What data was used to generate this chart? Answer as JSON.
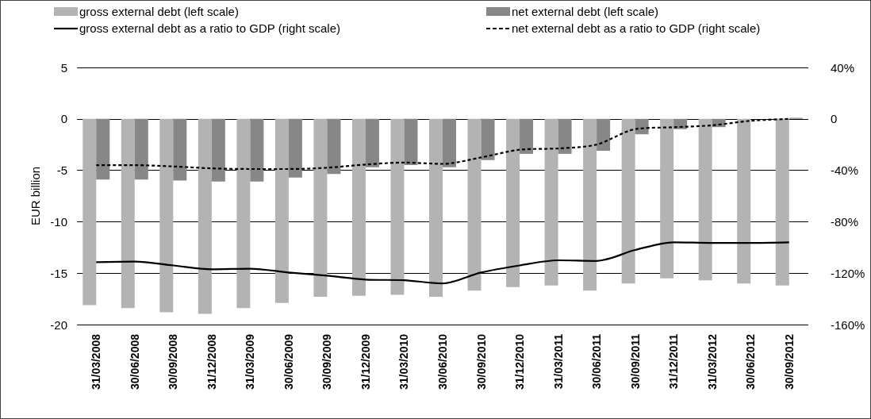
{
  "chart_data": {
    "type": "bar",
    "categories": [
      "31/03/2008",
      "30/06/2008",
      "30/09/2008",
      "31/12/2008",
      "31/03/2009",
      "30/06/2009",
      "30/09/2009",
      "31/12/2009",
      "31/03/2010",
      "30/06/2010",
      "30/09/2010",
      "31/12/2010",
      "31/03/2011",
      "30/06/2011",
      "30/09/2011",
      "31/12/2011",
      "31/03/2012",
      "30/06/2012",
      "30/09/2012"
    ],
    "series": [
      {
        "name": "gross external debt (left scale)",
        "color": "#b3b3b3",
        "values": [
          -18.1,
          -18.4,
          -18.8,
          -18.95,
          -18.4,
          -17.9,
          -17.3,
          -17.2,
          -17.1,
          -17.3,
          -16.7,
          -16.35,
          -16.2,
          -16.7,
          -16.0,
          -15.5,
          -15.7,
          -16.0,
          -16.2
        ]
      },
      {
        "name": "net external debt (left scale)",
        "color": "#878787",
        "values": [
          -5.9,
          -5.9,
          -6.0,
          -6.1,
          -6.1,
          -5.7,
          -5.35,
          -4.7,
          -4.5,
          -4.7,
          -4.0,
          -3.4,
          -3.4,
          -3.1,
          -1.5,
          -1.0,
          -0.8,
          null,
          0.1
        ]
      },
      {
        "name": "gross external debt as a ratio to GDP (right scale)",
        "type": "line",
        "axis": "y2",
        "color": "#000000",
        "line_style": "solid",
        "values": [
          -111.5,
          -111,
          -114,
          -117,
          -116.5,
          -119.5,
          -122,
          -125,
          -125.5,
          -128,
          -119.5,
          -114,
          -110,
          -110.5,
          -102,
          -96,
          -96.5,
          -96.5,
          -96
        ]
      },
      {
        "name": "net external debt as a ratio to GDP (right scale)",
        "type": "line",
        "axis": "y2",
        "color": "#000000",
        "line_style": "dashed",
        "values": [
          -36,
          -36,
          -37,
          -38.5,
          -39,
          -39,
          -38,
          -35.5,
          -34,
          -35,
          -30,
          -24,
          -23,
          -20,
          -8,
          -6.5,
          -5,
          -1.5,
          0
        ]
      }
    ],
    "ylabel": "EUR billion",
    "ylim": [
      -20,
      5
    ],
    "yticks": [
      -20,
      -15,
      -10,
      -5,
      0,
      5
    ],
    "y2lim": [
      -160,
      40
    ],
    "y2ticks": [
      {
        "value": -160,
        "label": "-160%"
      },
      {
        "value": -120,
        "label": "-120%"
      },
      {
        "value": -80,
        "label": "-80%"
      },
      {
        "value": -40,
        "label": "-40%"
      },
      0,
      {
        "value": 40,
        "label": "40%"
      }
    ],
    "grid": "y",
    "legend": "top",
    "marker": "none"
  }
}
